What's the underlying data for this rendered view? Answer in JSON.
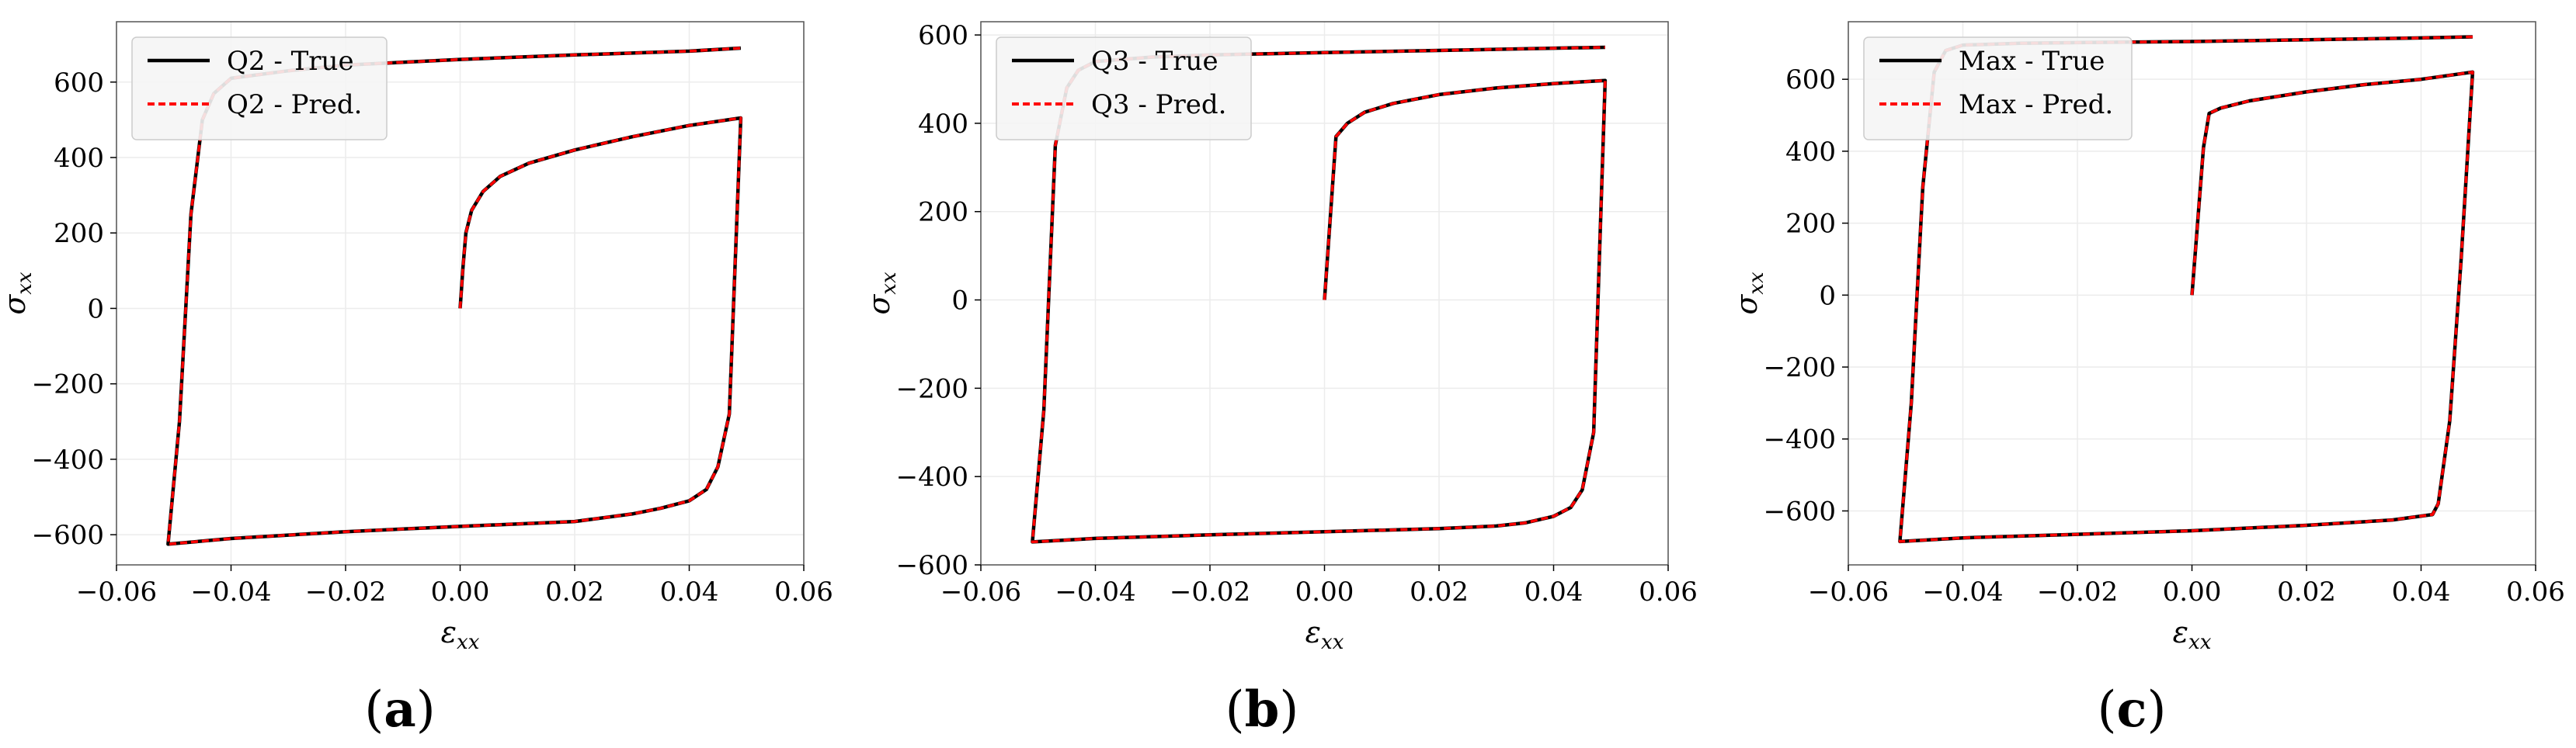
{
  "colors": {
    "true_line": "#000000",
    "pred_line": "#ff0000",
    "grid": "#ececec",
    "legend_bg": "#f5f5f5",
    "legend_border": "#cccccc"
  },
  "chart_data": [
    {
      "type": "line",
      "caption": "a",
      "xlabel": "ε_xx",
      "ylabel": "σ_xx",
      "xlim": [
        -0.06,
        0.06
      ],
      "ylim": [
        -680,
        760
      ],
      "xticks": [
        -0.06,
        -0.04,
        -0.02,
        0.0,
        0.02,
        0.04,
        0.06
      ],
      "xtick_labels": [
        "−0.06",
        "−0.04",
        "−0.02",
        "0.00",
        "0.02",
        "0.04",
        "0.06"
      ],
      "yticks": [
        -600,
        -400,
        -200,
        0,
        200,
        400,
        600
      ],
      "ytick_labels": [
        "−600",
        "−400",
        "−200",
        "0",
        "200",
        "400",
        "600"
      ],
      "grid": true,
      "legend_position": "top-left",
      "series": [
        {
          "name": "Q2 - True",
          "style": "solid",
          "x": [
            0,
            0.0005,
            0.001,
            0.002,
            0.004,
            0.007,
            0.012,
            0.02,
            0.03,
            0.04,
            0.049,
            0.047,
            0.045,
            0.043,
            0.04,
            0.035,
            0.03,
            0.02,
            0.0,
            -0.02,
            -0.04,
            -0.051,
            -0.049,
            -0.047,
            -0.045,
            -0.043,
            -0.04,
            -0.03,
            -0.02,
            0.0,
            0.02,
            0.04,
            0.049
          ],
          "y": [
            0,
            110,
            200,
            260,
            310,
            350,
            385,
            420,
            455,
            485,
            505,
            -280,
            -420,
            -480,
            -510,
            -530,
            -545,
            -565,
            -578,
            -592,
            -610,
            -625,
            -300,
            250,
            500,
            570,
            610,
            630,
            645,
            660,
            672,
            682,
            690
          ]
        },
        {
          "name": "Q2 - Pred.",
          "style": "dashed",
          "x": [
            0,
            0.0005,
            0.001,
            0.002,
            0.004,
            0.007,
            0.012,
            0.02,
            0.03,
            0.04,
            0.049,
            0.047,
            0.045,
            0.043,
            0.04,
            0.035,
            0.03,
            0.02,
            0.0,
            -0.02,
            -0.04,
            -0.051,
            -0.049,
            -0.047,
            -0.045,
            -0.043,
            -0.04,
            -0.03,
            -0.02,
            0.0,
            0.02,
            0.04,
            0.049
          ],
          "y": [
            0,
            110,
            200,
            260,
            310,
            350,
            385,
            420,
            455,
            485,
            505,
            -280,
            -420,
            -480,
            -510,
            -530,
            -545,
            -565,
            -578,
            -592,
            -610,
            -625,
            -300,
            250,
            500,
            570,
            610,
            630,
            645,
            660,
            672,
            682,
            690
          ]
        }
      ]
    },
    {
      "type": "line",
      "caption": "b",
      "xlabel": "ε_xx",
      "ylabel": "σ_xx",
      "xlim": [
        -0.06,
        0.06
      ],
      "ylim": [
        -600,
        630
      ],
      "xticks": [
        -0.06,
        -0.04,
        -0.02,
        0.0,
        0.02,
        0.04,
        0.06
      ],
      "xtick_labels": [
        "−0.06",
        "−0.04",
        "−0.02",
        "0.00",
        "0.02",
        "0.04",
        "0.06"
      ],
      "yticks": [
        -600,
        -400,
        -200,
        0,
        200,
        400,
        600
      ],
      "ytick_labels": [
        "−600",
        "−400",
        "−200",
        "0",
        "200",
        "400",
        "600"
      ],
      "grid": true,
      "legend_position": "top-left",
      "series": [
        {
          "name": "Q3 - True",
          "style": "solid",
          "x": [
            0,
            0.002,
            0.004,
            0.007,
            0.012,
            0.02,
            0.03,
            0.04,
            0.049,
            0.047,
            0.045,
            0.043,
            0.04,
            0.035,
            0.03,
            0.02,
            0.0,
            -0.02,
            -0.04,
            -0.051,
            -0.049,
            -0.047,
            -0.045,
            -0.043,
            -0.04,
            -0.03,
            -0.02,
            0.0,
            0.02,
            0.04,
            0.049
          ],
          "y": [
            0,
            370,
            400,
            425,
            445,
            465,
            480,
            490,
            497,
            -300,
            -430,
            -470,
            -490,
            -505,
            -512,
            -518,
            -525,
            -532,
            -540,
            -548,
            -250,
            350,
            480,
            520,
            540,
            550,
            555,
            560,
            565,
            570,
            572
          ]
        },
        {
          "name": "Q3 - Pred.",
          "style": "dashed",
          "x": [
            0,
            0.002,
            0.004,
            0.007,
            0.012,
            0.02,
            0.03,
            0.04,
            0.049,
            0.047,
            0.045,
            0.043,
            0.04,
            0.035,
            0.03,
            0.02,
            0.0,
            -0.02,
            -0.04,
            -0.051,
            -0.049,
            -0.047,
            -0.045,
            -0.043,
            -0.04,
            -0.03,
            -0.02,
            0.0,
            0.02,
            0.04,
            0.049
          ],
          "y": [
            0,
            370,
            400,
            425,
            445,
            465,
            480,
            490,
            497,
            -300,
            -430,
            -470,
            -490,
            -505,
            -512,
            -518,
            -525,
            -532,
            -540,
            -548,
            -250,
            350,
            480,
            520,
            540,
            550,
            555,
            560,
            565,
            570,
            572
          ]
        }
      ]
    },
    {
      "type": "line",
      "caption": "c",
      "xlabel": "ε_xx",
      "ylabel": "σ_xx",
      "xlim": [
        -0.06,
        0.06
      ],
      "ylim": [
        -750,
        760
      ],
      "xticks": [
        -0.06,
        -0.04,
        -0.02,
        0.0,
        0.02,
        0.04,
        0.06
      ],
      "xtick_labels": [
        "−0.06",
        "−0.04",
        "−0.02",
        "0.00",
        "0.02",
        "0.04",
        "0.06"
      ],
      "yticks": [
        -600,
        -400,
        -200,
        0,
        200,
        400,
        600
      ],
      "ytick_labels": [
        "−600",
        "−400",
        "−200",
        "0",
        "200",
        "400",
        "600"
      ],
      "grid": true,
      "legend_position": "top-left",
      "series": [
        {
          "name": "Max - True",
          "style": "solid",
          "x": [
            0,
            0.002,
            0.003,
            0.005,
            0.01,
            0.02,
            0.03,
            0.04,
            0.049,
            0.047,
            0.045,
            0.043,
            0.042,
            0.035,
            0.02,
            0.0,
            -0.02,
            -0.04,
            -0.051,
            -0.049,
            -0.047,
            -0.045,
            -0.043,
            -0.04,
            -0.03,
            -0.02,
            0.0,
            0.02,
            0.04,
            0.049
          ],
          "y": [
            0,
            410,
            505,
            520,
            540,
            565,
            585,
            600,
            620,
            100,
            -350,
            -580,
            -610,
            -625,
            -640,
            -655,
            -665,
            -675,
            -685,
            -300,
            300,
            620,
            680,
            695,
            700,
            702,
            705,
            710,
            715,
            718
          ]
        },
        {
          "name": "Max - Pred.",
          "style": "dashed",
          "x": [
            0,
            0.002,
            0.003,
            0.005,
            0.01,
            0.02,
            0.03,
            0.04,
            0.049,
            0.047,
            0.045,
            0.043,
            0.042,
            0.035,
            0.02,
            0.0,
            -0.02,
            -0.04,
            -0.051,
            -0.049,
            -0.047,
            -0.045,
            -0.043,
            -0.04,
            -0.03,
            -0.02,
            0.0,
            0.02,
            0.04,
            0.049
          ],
          "y": [
            0,
            410,
            505,
            520,
            540,
            565,
            585,
            600,
            620,
            100,
            -350,
            -580,
            -610,
            -625,
            -640,
            -655,
            -665,
            -675,
            -685,
            -300,
            300,
            620,
            680,
            695,
            700,
            702,
            705,
            710,
            715,
            718
          ]
        }
      ]
    }
  ]
}
